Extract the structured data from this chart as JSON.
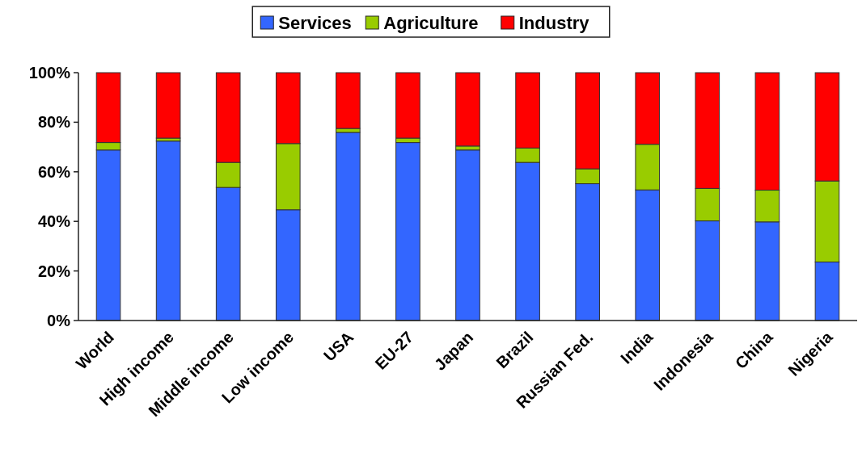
{
  "chart_data": {
    "type": "bar",
    "stacked": true,
    "categories": [
      "World",
      "High income",
      "Middle income",
      "Low income",
      "USA",
      "EU-27",
      "Japan",
      "Brazil",
      "Russian Fed.",
      "India",
      "Indonesia",
      "China",
      "Nigeria"
    ],
    "series": [
      {
        "name": "Services",
        "color": "#3366ff",
        "values": [
          68.8,
          72.4,
          53.7,
          44.7,
          75.9,
          71.8,
          68.8,
          63.8,
          55.2,
          52.7,
          40.2,
          39.8,
          23.6
        ]
      },
      {
        "name": "Agriculture",
        "color": "#99cc00",
        "values": [
          3.0,
          1.2,
          10.1,
          26.7,
          1.6,
          1.8,
          1.6,
          5.8,
          6.0,
          18.4,
          13.1,
          12.8,
          32.7
        ]
      },
      {
        "name": "Industry",
        "color": "#ff0000",
        "values": [
          28.2,
          26.4,
          36.2,
          28.6,
          22.5,
          26.4,
          29.6,
          30.4,
          38.8,
          28.9,
          46.7,
          47.4,
          43.7
        ]
      }
    ],
    "ylim": [
      0,
      100
    ],
    "yticks": [
      {
        "value": 0,
        "label": "0%"
      },
      {
        "value": 20,
        "label": "20%"
      },
      {
        "value": 40,
        "label": "40%"
      },
      {
        "value": 60,
        "label": "60%"
      },
      {
        "value": 80,
        "label": "80%"
      },
      {
        "value": 100,
        "label": "100%"
      }
    ],
    "grid": false,
    "legend": "top"
  }
}
